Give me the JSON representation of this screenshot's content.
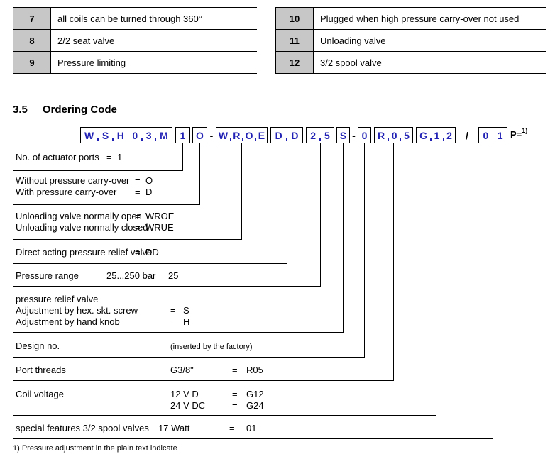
{
  "colors": {
    "code_char": "#2121b5",
    "number_cell_bg": "#c7c7c7",
    "line": "#000000"
  },
  "top_tables": {
    "left": {
      "rows": [
        {
          "num": "7",
          "text": "all coils can be turned through 360°"
        },
        {
          "num": "8",
          "text": "2/2 seat valve"
        },
        {
          "num": "9",
          "text": "Pressure limiting"
        }
      ]
    },
    "right": {
      "rows": [
        {
          "num": "10",
          "text": "Plugged when high pressure carry-over not used"
        },
        {
          "num": "11",
          "text": "Unloading valve"
        },
        {
          "num": "12",
          "text": "3/2 spool valve"
        }
      ]
    }
  },
  "section": {
    "number": "3.5",
    "title": "Ordering Code"
  },
  "code": {
    "items": [
      {
        "type": "box",
        "chars": [
          "W",
          "S",
          "H",
          "0",
          "3",
          "M"
        ]
      },
      {
        "type": "box",
        "chars": [
          "1"
        ]
      },
      {
        "type": "box",
        "chars": [
          "O"
        ]
      },
      {
        "type": "sep",
        "text": "-"
      },
      {
        "type": "box",
        "chars": [
          "W",
          "R",
          "O",
          "E"
        ]
      },
      {
        "type": "box",
        "chars": [
          "D",
          "D"
        ]
      },
      {
        "type": "box",
        "chars": [
          "2",
          "5"
        ]
      },
      {
        "type": "box",
        "chars": [
          "S"
        ]
      },
      {
        "type": "sep",
        "text": "-"
      },
      {
        "type": "box",
        "chars": [
          "0"
        ]
      },
      {
        "type": "box",
        "chars": [
          "R",
          "0",
          "5"
        ]
      },
      {
        "type": "box",
        "chars": [
          "G",
          "1",
          "2"
        ]
      },
      {
        "type": "sep",
        "text": "/"
      },
      {
        "type": "box",
        "chars": [
          "0",
          "1"
        ]
      }
    ],
    "suffix": "P=",
    "suffix_sup": "1)"
  },
  "ordering_rows": [
    {
      "lines": [
        {
          "label": "No. of actuator ports",
          "eq": "=",
          "value": "1"
        }
      ]
    },
    {
      "lines": [
        {
          "label": "Without pressure carry-over",
          "eq": "=",
          "value": "O"
        },
        {
          "label": "With pressure carry-over",
          "eq": "=",
          "value": "D"
        }
      ]
    },
    {
      "lines": [
        {
          "label": "Unloading valve normally open",
          "eq": "=",
          "value": "WROE"
        },
        {
          "label": "Unloading valve normally closed",
          "eq": "=",
          "value": "WRUE"
        }
      ]
    },
    {
      "lines": [
        {
          "label": "Direct acting pressure relief valve",
          "eq": "=",
          "value": "DD"
        }
      ]
    },
    {
      "lines": [
        {
          "label": "Pressure range",
          "mid": "25...250 bar",
          "eq": "=",
          "value": "25"
        }
      ]
    },
    {
      "lines": [
        {
          "label": "pressure relief valve"
        },
        {
          "label": "Adjustment by hex. skt. screw",
          "eq": "=",
          "value": "S"
        },
        {
          "label": "Adjustment by hand knob",
          "eq": "=",
          "value": "H"
        }
      ]
    },
    {
      "lines": [
        {
          "label": "Design no.",
          "note": "(inserted by the factory)"
        }
      ]
    },
    {
      "lines": [
        {
          "label": "Port threads",
          "mid": "G3/8\"",
          "eq": "=",
          "value": "R05"
        }
      ]
    },
    {
      "lines": [
        {
          "label": "Coil voltage",
          "mid": "12 V D",
          "eq": "=",
          "value": "G12"
        },
        {
          "mid": "24 V DC",
          "eq": "=",
          "value": "G24"
        }
      ]
    },
    {
      "lines": [
        {
          "label": "special features 3/2 spool valves",
          "mid": "17 Watt",
          "eq": "=",
          "value": "01"
        }
      ]
    }
  ],
  "footnote": "1) Pressure adjustment in the plain text indicate"
}
